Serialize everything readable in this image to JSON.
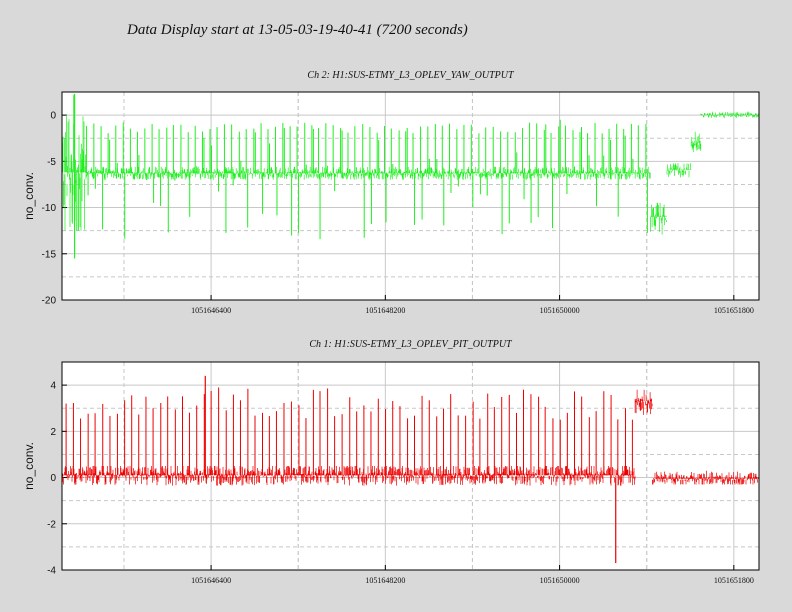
{
  "page_title": "Data Display start at 13-05-03-19-40-41 (7200 seconds)",
  "colors": {
    "background": "#d9d9d9",
    "plot_background": "#ffffff",
    "grid": "#c8c8c8",
    "series_green": "#22ee22",
    "series_red": "#ee0000"
  },
  "chart_data": [
    {
      "type": "line",
      "title": "Ch 2: H1:SUS-ETMY_L3_OPLEV_YAW_OUTPUT",
      "xlabel": "",
      "ylabel": "no_conv.",
      "xlim": [
        1051644860,
        1051652060
      ],
      "ylim": [
        -20,
        2.5
      ],
      "x_ticks": [
        1051646400,
        1051648200,
        1051650000,
        1051651800
      ],
      "x_tick_labels": [
        "1051646400",
        "1051648200",
        "1051650000",
        "1051651800"
      ],
      "y_ticks": [
        0,
        -5,
        -10,
        -15,
        -20
      ],
      "y_tick_labels": [
        "0",
        "-5",
        "-10",
        "-15",
        "-20"
      ],
      "grid": true,
      "legend": "none",
      "series": [
        {
          "color": "#22ee22",
          "segments": [
            {
              "x": [
                1051644860,
                1051645110
              ],
              "y_center": -6.2,
              "band": [
                -12.5,
                2.2
              ]
            },
            {
              "x": [
                1051645110,
                1051650940
              ],
              "y_center": -6.3,
              "band": [
                -7.0,
                -5.6
              ]
            },
            {
              "x": [
                1051650940,
                1051651110
              ],
              "y_center": -11.0,
              "band": [
                -13.5,
                -9.5
              ]
            },
            {
              "x": [
                1051651110,
                1051651360
              ],
              "y_center": -5.9,
              "band": [
                -7.0,
                -5.2
              ]
            },
            {
              "x": [
                1051651360,
                1051651460
              ],
              "y_center": -3.0,
              "band": [
                -4.0,
                -1.5
              ]
            },
            {
              "x": [
                1051651460,
                1051652060
              ],
              "y_center": 0.0,
              "band": [
                -0.3,
                0.4
              ]
            }
          ],
          "spike_interval_s": 75,
          "spike_range": [
            -13.5,
            -0.5
          ],
          "extremes": [
            {
              "x": 1051644990,
              "y": -15.5
            },
            {
              "x": 1051644990,
              "y": 2.3
            }
          ]
        }
      ]
    },
    {
      "type": "line",
      "title": "Ch 1: H1:SUS-ETMY_L3_OPLEV_PIT_OUTPUT",
      "xlabel": "",
      "ylabel": "no_conv.",
      "xlim": [
        1051644860,
        1051652060
      ],
      "ylim": [
        -4,
        5
      ],
      "x_ticks": [
        1051646400,
        1051648200,
        1051650000,
        1051651800
      ],
      "x_tick_labels": [
        "1051646400",
        "1051648200",
        "1051650000",
        "1051651800"
      ],
      "y_ticks": [
        4,
        2,
        0,
        -2,
        -4
      ],
      "y_tick_labels": [
        "4",
        "2",
        "0",
        "-2",
        "-4"
      ],
      "grid": true,
      "legend": "none",
      "series": [
        {
          "color": "#ee0000",
          "segments": [
            {
              "x": [
                1051644860,
                1051650780
              ],
              "y_center": 0.1,
              "band": [
                -0.4,
                0.5
              ]
            },
            {
              "x": [
                1051650780,
                1051650960
              ],
              "y_center": 3.3,
              "band": [
                2.6,
                3.8
              ]
            },
            {
              "x": [
                1051650960,
                1051652060
              ],
              "y_center": -0.05,
              "band": [
                -0.3,
                0.3
              ]
            }
          ],
          "spike_interval_s": 75,
          "spike_range": [
            2.5,
            3.9
          ],
          "extremes": [
            {
              "x": 1051646340,
              "y": 4.4
            },
            {
              "x": 1051650580,
              "y": -3.7
            }
          ]
        }
      ]
    }
  ]
}
